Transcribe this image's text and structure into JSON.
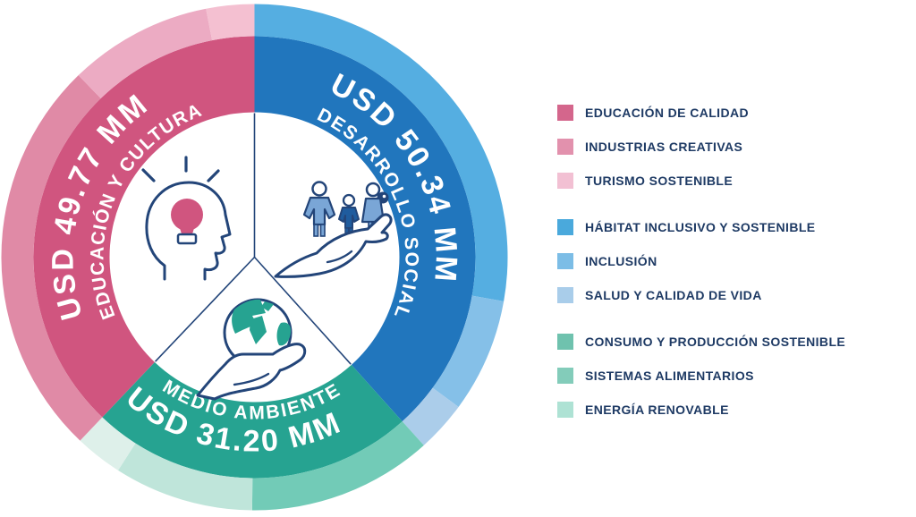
{
  "page": {
    "background": "#ffffff",
    "text_navy": "#1e3a64",
    "icon_navy": "#234579"
  },
  "chart_data": {
    "type": "donut",
    "direction": "clockwise",
    "start_angle_deg": 0,
    "legend_position": "right",
    "unit_label": "USD MM",
    "segments": [
      {
        "id": "desarrollo-social",
        "label": "DESARROLLO SOCIAL",
        "amount_label": "USD 50.34 MM",
        "value": 50.34,
        "color": "#2176bd",
        "icon": "family-in-hand",
        "subsegments": [
          {
            "label": "HÁBITAT INCLUSIVO Y SOSTENIBLE",
            "legend_color": "#4aa9dc",
            "ring_color": "#55aee1",
            "ring_share_est": 0.725
          },
          {
            "label": "INCLUSIÓN",
            "legend_color": "#7cbde6",
            "ring_color": "#85c0e8",
            "ring_share_est": 0.19
          },
          {
            "label": "SALUD Y CALIDAD DE VIDA",
            "legend_color": "#a9cdea",
            "ring_color": "#abcdea",
            "ring_share_est": 0.085
          }
        ]
      },
      {
        "id": "medio-ambiente",
        "label": "MEDIO AMBIENTE",
        "amount_label": "USD 31.20 MM",
        "value": 31.2,
        "color": "#26a391",
        "icon": "globe-in-hand",
        "subsegments": [
          {
            "label": "CONSUMO Y PRODUCCIÓN SOSTENIBLE",
            "legend_color": "#6fc2ae",
            "ring_color": "#72cbb7",
            "ring_share_est": 0.497
          },
          {
            "label": "SISTEMAS ALIMENTARIOS",
            "legend_color": "#83ccba",
            "ring_color": "#bfe5da",
            "ring_share_est": 0.375
          },
          {
            "label": "ENERGÍA RENOVABLE",
            "legend_color": "#aee2d4",
            "ring_color": "#def0ea",
            "ring_share_est": 0.128
          }
        ]
      },
      {
        "id": "educacion-cultura",
        "label": "EDUCACIÓN Y CULTURA",
        "amount_label": "USD 49.77 MM",
        "value": 49.77,
        "color": "#d0557f",
        "icon": "head-lightbulb",
        "subsegments": [
          {
            "label": "EDUCACIÓN DE CALIDAD",
            "legend_color": "#d4668c",
            "ring_color": "#e08aa6",
            "ring_share_est": 0.677
          },
          {
            "label": "INDUSTRIAS CREATIVAS",
            "legend_color": "#e291ad",
            "ring_color": "#ecabc3",
            "ring_share_est": 0.242
          },
          {
            "label": "TURISMO SOSTENIBLE",
            "legend_color": "#f2c0d3",
            "ring_color": "#f4c0d1",
            "ring_share_est": 0.081
          }
        ]
      }
    ],
    "legend_group_order": [
      "educacion-cultura",
      "desarrollo-social",
      "medio-ambiente"
    ]
  }
}
